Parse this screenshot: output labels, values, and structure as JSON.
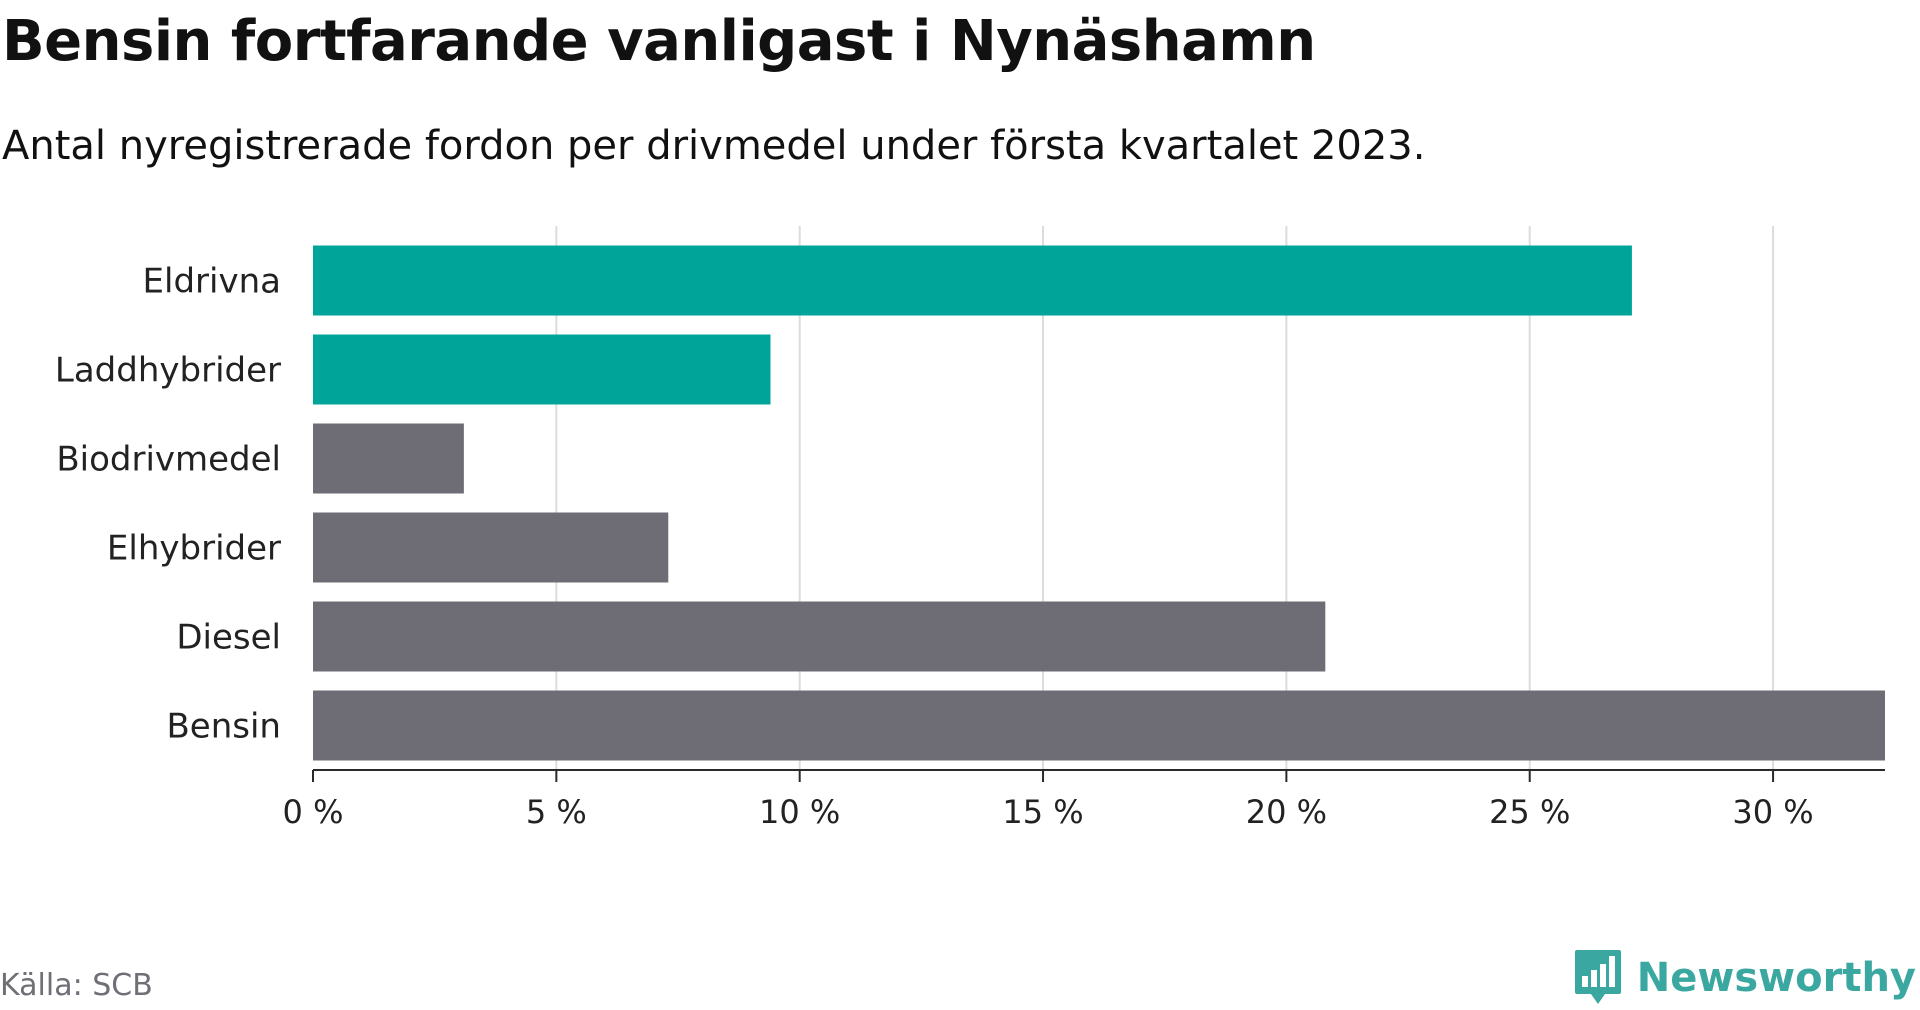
{
  "title": "Bensin fortfarande vanligast i Nynäshamn",
  "subtitle": "Antal nyregistrerade fordon per drivmedel under första kvartalet 2023.",
  "source": "Källa: SCB",
  "brand": "Newsworthy",
  "colors": {
    "accent": "#00a499",
    "neutral": "#6e6d75",
    "grid": "#dcdcdc",
    "axis": "#2a2a2a",
    "brand": "#3aa8a0"
  },
  "icons": {
    "brand_logo": "bar-chart-speech-bubble-icon"
  },
  "chart_data": {
    "type": "bar",
    "orientation": "horizontal",
    "categories": [
      "Eldrivna",
      "Laddhybrider",
      "Biodrivmedel",
      "Elhybrider",
      "Diesel",
      "Bensin"
    ],
    "values": [
      27.1,
      9.4,
      3.1,
      7.3,
      20.8,
      32.3
    ],
    "highlight": [
      true,
      true,
      false,
      false,
      false,
      false
    ],
    "x_ticks": [
      "0 %",
      "5 %",
      "10 %",
      "15 %",
      "20 %",
      "25 %",
      "30 %"
    ],
    "x_tick_values": [
      0,
      5,
      10,
      15,
      20,
      25,
      30
    ],
    "xlim": [
      0,
      32.3
    ],
    "grid": true,
    "title": "Bensin fortfarande vanligast i Nynäshamn",
    "xlabel": "",
    "ylabel": ""
  }
}
